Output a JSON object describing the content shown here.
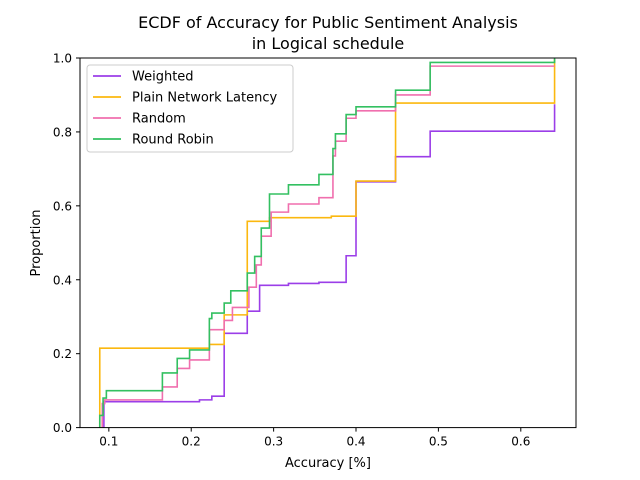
{
  "chart_data": {
    "type": "line",
    "subtype": "ecdf-step",
    "title_line1": "ECDF of Accuracy for Public Sentiment Analysis",
    "title_line2": "in Logical schedule",
    "xlabel": "Accuracy [%]",
    "ylabel": "Proportion",
    "xlim": [
      0.065,
      0.667
    ],
    "ylim": [
      0.0,
      1.0
    ],
    "xticks": [
      0.1,
      0.2,
      0.3,
      0.4,
      0.5,
      0.6
    ],
    "xtick_labels": [
      "0.1",
      "0.2",
      "0.3",
      "0.4",
      "0.5",
      "0.6"
    ],
    "yticks": [
      0.0,
      0.2,
      0.4,
      0.6,
      0.8,
      1.0
    ],
    "ytick_labels": [
      "0.0",
      "0.2",
      "0.4",
      "0.6",
      "0.8",
      "1.0"
    ],
    "grid": false,
    "legend_position": "top-left",
    "series": [
      {
        "name": "Weighted",
        "color": "#9b3ee8",
        "points": [
          [
            0.094,
            0.0
          ],
          [
            0.094,
            0.07
          ],
          [
            0.21,
            0.07
          ],
          [
            0.21,
            0.075
          ],
          [
            0.225,
            0.075
          ],
          [
            0.225,
            0.085
          ],
          [
            0.24,
            0.085
          ],
          [
            0.24,
            0.255
          ],
          [
            0.268,
            0.255
          ],
          [
            0.268,
            0.315
          ],
          [
            0.283,
            0.315
          ],
          [
            0.283,
            0.385
          ],
          [
            0.318,
            0.385
          ],
          [
            0.318,
            0.39
          ],
          [
            0.355,
            0.39
          ],
          [
            0.355,
            0.393
          ],
          [
            0.388,
            0.393
          ],
          [
            0.388,
            0.465
          ],
          [
            0.4,
            0.465
          ],
          [
            0.4,
            0.665
          ],
          [
            0.448,
            0.665
          ],
          [
            0.448,
            0.733
          ],
          [
            0.49,
            0.733
          ],
          [
            0.49,
            0.802
          ],
          [
            0.641,
            0.802
          ],
          [
            0.641,
            0.875
          ]
        ]
      },
      {
        "name": "Plain Network Latency",
        "color": "#fbb80f",
        "points": [
          [
            0.089,
            0.0
          ],
          [
            0.089,
            0.215
          ],
          [
            0.222,
            0.215
          ],
          [
            0.222,
            0.225
          ],
          [
            0.24,
            0.225
          ],
          [
            0.24,
            0.305
          ],
          [
            0.268,
            0.305
          ],
          [
            0.268,
            0.558
          ],
          [
            0.295,
            0.558
          ],
          [
            0.295,
            0.568
          ],
          [
            0.37,
            0.568
          ],
          [
            0.37,
            0.572
          ],
          [
            0.4,
            0.572
          ],
          [
            0.4,
            0.667
          ],
          [
            0.448,
            0.667
          ],
          [
            0.448,
            0.878
          ],
          [
            0.641,
            0.878
          ],
          [
            0.641,
            0.997
          ]
        ]
      },
      {
        "name": "Random",
        "color": "#f06fae",
        "points": [
          [
            0.092,
            0.0
          ],
          [
            0.092,
            0.065
          ],
          [
            0.095,
            0.065
          ],
          [
            0.095,
            0.075
          ],
          [
            0.165,
            0.075
          ],
          [
            0.165,
            0.11
          ],
          [
            0.183,
            0.11
          ],
          [
            0.183,
            0.16
          ],
          [
            0.198,
            0.16
          ],
          [
            0.198,
            0.183
          ],
          [
            0.222,
            0.183
          ],
          [
            0.222,
            0.265
          ],
          [
            0.24,
            0.265
          ],
          [
            0.24,
            0.29
          ],
          [
            0.25,
            0.29
          ],
          [
            0.25,
            0.325
          ],
          [
            0.27,
            0.325
          ],
          [
            0.27,
            0.38
          ],
          [
            0.279,
            0.38
          ],
          [
            0.279,
            0.44
          ],
          [
            0.285,
            0.44
          ],
          [
            0.285,
            0.518
          ],
          [
            0.297,
            0.518
          ],
          [
            0.297,
            0.583
          ],
          [
            0.318,
            0.583
          ],
          [
            0.318,
            0.605
          ],
          [
            0.355,
            0.605
          ],
          [
            0.355,
            0.622
          ],
          [
            0.372,
            0.622
          ],
          [
            0.372,
            0.735
          ],
          [
            0.375,
            0.735
          ],
          [
            0.375,
            0.775
          ],
          [
            0.388,
            0.775
          ],
          [
            0.388,
            0.837
          ],
          [
            0.4,
            0.837
          ],
          [
            0.4,
            0.857
          ],
          [
            0.448,
            0.857
          ],
          [
            0.448,
            0.9
          ],
          [
            0.49,
            0.9
          ],
          [
            0.49,
            0.978
          ],
          [
            0.641,
            0.978
          ]
        ]
      },
      {
        "name": "Round Robin",
        "color": "#33c061",
        "points": [
          [
            0.089,
            0.0
          ],
          [
            0.089,
            0.033
          ],
          [
            0.093,
            0.033
          ],
          [
            0.093,
            0.08
          ],
          [
            0.097,
            0.08
          ],
          [
            0.097,
            0.1
          ],
          [
            0.165,
            0.1
          ],
          [
            0.165,
            0.148
          ],
          [
            0.183,
            0.148
          ],
          [
            0.183,
            0.187
          ],
          [
            0.198,
            0.187
          ],
          [
            0.198,
            0.21
          ],
          [
            0.222,
            0.21
          ],
          [
            0.222,
            0.295
          ],
          [
            0.225,
            0.295
          ],
          [
            0.225,
            0.31
          ],
          [
            0.24,
            0.31
          ],
          [
            0.24,
            0.337
          ],
          [
            0.248,
            0.337
          ],
          [
            0.248,
            0.37
          ],
          [
            0.268,
            0.37
          ],
          [
            0.268,
            0.418
          ],
          [
            0.277,
            0.418
          ],
          [
            0.277,
            0.463
          ],
          [
            0.285,
            0.463
          ],
          [
            0.285,
            0.54
          ],
          [
            0.295,
            0.54
          ],
          [
            0.295,
            0.632
          ],
          [
            0.318,
            0.632
          ],
          [
            0.318,
            0.657
          ],
          [
            0.355,
            0.657
          ],
          [
            0.355,
            0.685
          ],
          [
            0.372,
            0.685
          ],
          [
            0.372,
            0.755
          ],
          [
            0.375,
            0.755
          ],
          [
            0.375,
            0.795
          ],
          [
            0.388,
            0.795
          ],
          [
            0.388,
            0.847
          ],
          [
            0.4,
            0.847
          ],
          [
            0.4,
            0.868
          ],
          [
            0.448,
            0.868
          ],
          [
            0.448,
            0.913
          ],
          [
            0.49,
            0.913
          ],
          [
            0.49,
            0.988
          ],
          [
            0.641,
            0.988
          ],
          [
            0.641,
            1.0
          ]
        ]
      }
    ]
  }
}
